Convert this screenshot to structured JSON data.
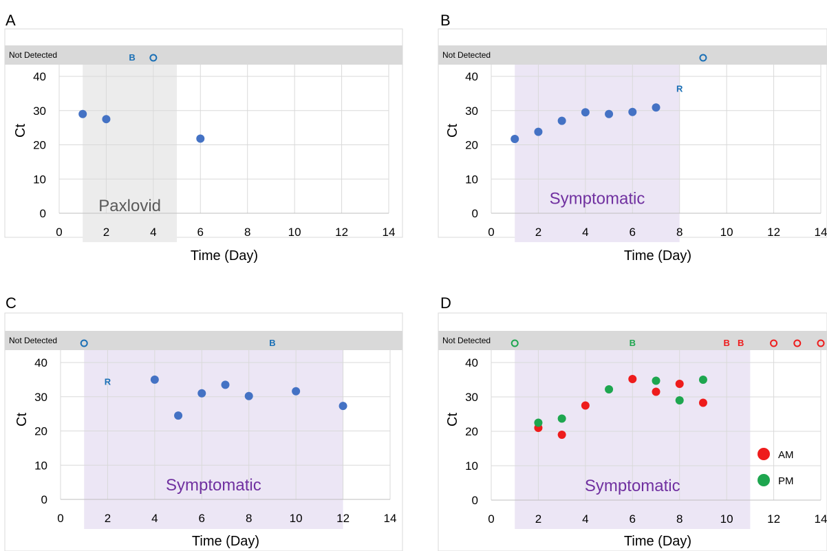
{
  "colors": {
    "blue": "#4472c4",
    "marker_blue": "#1a6fb5",
    "red": "#ee1c1c",
    "green": "#1ea64f",
    "grid": "#d9d9d9",
    "nd_band": "#d9d9d9",
    "gray_shade": "#ececec",
    "purple_shade": "#ece6f5",
    "purple_text": "#7030a0",
    "gray_text": "#595959"
  },
  "chart_data": [
    {
      "panel": "A",
      "type": "scatter",
      "xlabel": "Time (Day)",
      "ylabel": "Ct",
      "xlim": [
        0,
        14
      ],
      "ylim": [
        0,
        40
      ],
      "xticks": [
        0,
        2,
        4,
        6,
        8,
        10,
        12,
        14
      ],
      "yticks": [
        0,
        10,
        20,
        30,
        40
      ],
      "not_detected_label": "Not Detected",
      "shade": {
        "x": [
          1,
          5
        ],
        "label": "Paxlovid",
        "style": "gray"
      },
      "series": [
        {
          "color": "blue",
          "points": [
            [
              1,
              29
            ],
            [
              2,
              27.5
            ],
            [
              6,
              21.8
            ]
          ]
        }
      ],
      "not_detected_markers": [
        {
          "x": 3.1,
          "text": "B",
          "color": "marker_blue"
        },
        {
          "x": 4,
          "text": "o",
          "color": "marker_blue"
        }
      ],
      "annotations": []
    },
    {
      "panel": "B",
      "type": "scatter",
      "xlabel": "Time (Day)",
      "ylabel": "Ct",
      "xlim": [
        0,
        14
      ],
      "ylim": [
        0,
        40
      ],
      "xticks": [
        0,
        2,
        4,
        6,
        8,
        10,
        12,
        14
      ],
      "yticks": [
        0,
        10,
        20,
        30,
        40
      ],
      "not_detected_label": "Not Detected",
      "shade": {
        "x": [
          1,
          8
        ],
        "label": "Symptomatic",
        "style": "purple"
      },
      "series": [
        {
          "color": "blue",
          "points": [
            [
              1,
              21.7
            ],
            [
              2,
              23.8
            ],
            [
              3,
              27
            ],
            [
              4,
              29.5
            ],
            [
              5,
              29
            ],
            [
              6,
              29.6
            ],
            [
              7,
              30.9
            ]
          ]
        }
      ],
      "not_detected_markers": [
        {
          "x": 9,
          "text": "o",
          "color": "marker_blue"
        }
      ],
      "annotations": [
        {
          "x": 8,
          "y": 35.5,
          "text": "R",
          "color": "marker_blue"
        }
      ]
    },
    {
      "panel": "C",
      "type": "scatter",
      "xlabel": "Time (Day)",
      "ylabel": "Ct",
      "xlim": [
        0,
        14
      ],
      "ylim": [
        0,
        40
      ],
      "xticks": [
        0,
        2,
        4,
        6,
        8,
        10,
        12,
        14
      ],
      "yticks": [
        0,
        10,
        20,
        30,
        40
      ],
      "not_detected_label": "Not Detected",
      "shade": {
        "x": [
          1,
          12
        ],
        "label": "Symptomatic",
        "style": "purple"
      },
      "series": [
        {
          "color": "blue",
          "points": [
            [
              4,
              35
            ],
            [
              5,
              24.5
            ],
            [
              6,
              31
            ],
            [
              7,
              33.5
            ],
            [
              8,
              30.2
            ],
            [
              10,
              31.6
            ],
            [
              12,
              27.3
            ]
          ]
        }
      ],
      "not_detected_markers": [
        {
          "x": 1,
          "text": "o",
          "color": "marker_blue"
        },
        {
          "x": 9,
          "text": "B",
          "color": "marker_blue"
        }
      ],
      "annotations": [
        {
          "x": 2,
          "y": 33.5,
          "text": "R",
          "color": "marker_blue"
        }
      ]
    },
    {
      "panel": "D",
      "type": "scatter",
      "xlabel": "Time (Day)",
      "ylabel": "Ct",
      "xlim": [
        0,
        14
      ],
      "ylim": [
        0,
        40
      ],
      "xticks": [
        0,
        2,
        4,
        6,
        8,
        10,
        12,
        14
      ],
      "yticks": [
        0,
        10,
        20,
        30,
        40
      ],
      "not_detected_label": "Not Detected",
      "shade": {
        "x": [
          1,
          11
        ],
        "label": "Symptomatic",
        "style": "purple"
      },
      "legend": {
        "position": "bottom-right",
        "items": [
          {
            "label": "AM",
            "color": "red"
          },
          {
            "label": "PM",
            "color": "green"
          }
        ]
      },
      "series": [
        {
          "name": "AM",
          "color": "red",
          "points": [
            [
              2,
              21
            ],
            [
              3,
              19
            ],
            [
              4,
              27.5
            ],
            [
              6,
              35.2
            ],
            [
              7,
              31.5
            ],
            [
              8,
              33.8
            ],
            [
              9,
              28.3
            ]
          ]
        },
        {
          "name": "PM",
          "color": "green",
          "points": [
            [
              2,
              22.5
            ],
            [
              3,
              23.7
            ],
            [
              5,
              32.2
            ],
            [
              7,
              34.7
            ],
            [
              8,
              29
            ],
            [
              9,
              35
            ]
          ]
        }
      ],
      "not_detected_markers": [
        {
          "x": 1,
          "text": "o",
          "color": "green"
        },
        {
          "x": 6,
          "text": "B",
          "color": "green"
        },
        {
          "x": 10,
          "text": "B",
          "color": "red"
        },
        {
          "x": 10.6,
          "text": "B",
          "color": "red"
        },
        {
          "x": 12,
          "text": "o",
          "color": "red"
        },
        {
          "x": 13,
          "text": "o",
          "color": "red"
        },
        {
          "x": 14,
          "text": "o",
          "color": "red"
        }
      ],
      "annotations": []
    }
  ]
}
